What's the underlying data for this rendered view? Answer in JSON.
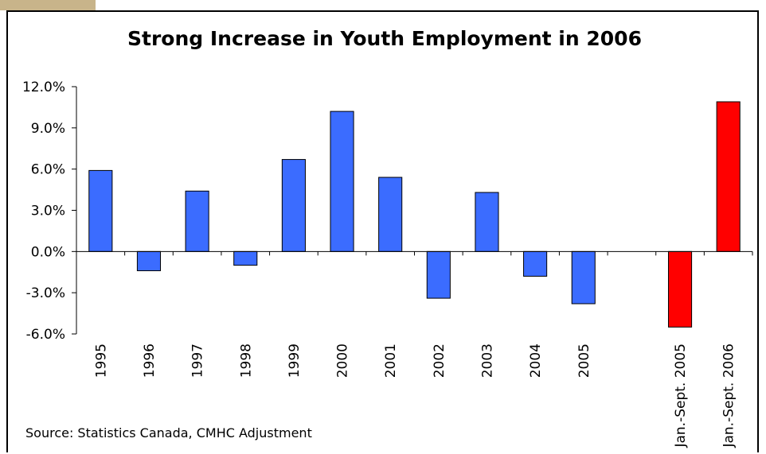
{
  "chart_data": {
    "type": "bar",
    "title": "Strong Increase in Youth Employment in 2006",
    "xlabel": "",
    "ylabel": "",
    "categories": [
      "1995",
      "1996",
      "1997",
      "1998",
      "1999",
      "2000",
      "2001",
      "2002",
      "2003",
      "2004",
      "2005",
      "",
      "Jan.-Sept. 2005",
      "Jan.-Sept. 2006"
    ],
    "values": [
      5.9,
      -1.4,
      4.4,
      -1.0,
      6.7,
      10.2,
      5.4,
      -3.4,
      4.3,
      -1.8,
      -3.8,
      null,
      -5.5,
      10.9
    ],
    "bar_colors": [
      "#3b6cff",
      "#3b6cff",
      "#3b6cff",
      "#3b6cff",
      "#3b6cff",
      "#3b6cff",
      "#3b6cff",
      "#3b6cff",
      "#3b6cff",
      "#3b6cff",
      "#3b6cff",
      "#3b6cff",
      "#ff0000",
      "#ff0000"
    ],
    "yticks": [
      "12.0%",
      "9.0%",
      "6.0%",
      "3.0%",
      "0.0%",
      "-3.0%",
      "-6.0%"
    ],
    "ytick_values": [
      12,
      9,
      6,
      3,
      0,
      -3,
      -6
    ],
    "ylim": [
      -6,
      12
    ],
    "grid": false,
    "legend": "none",
    "source": "Source: Statistics Canada, CMHC Adjustment"
  }
}
